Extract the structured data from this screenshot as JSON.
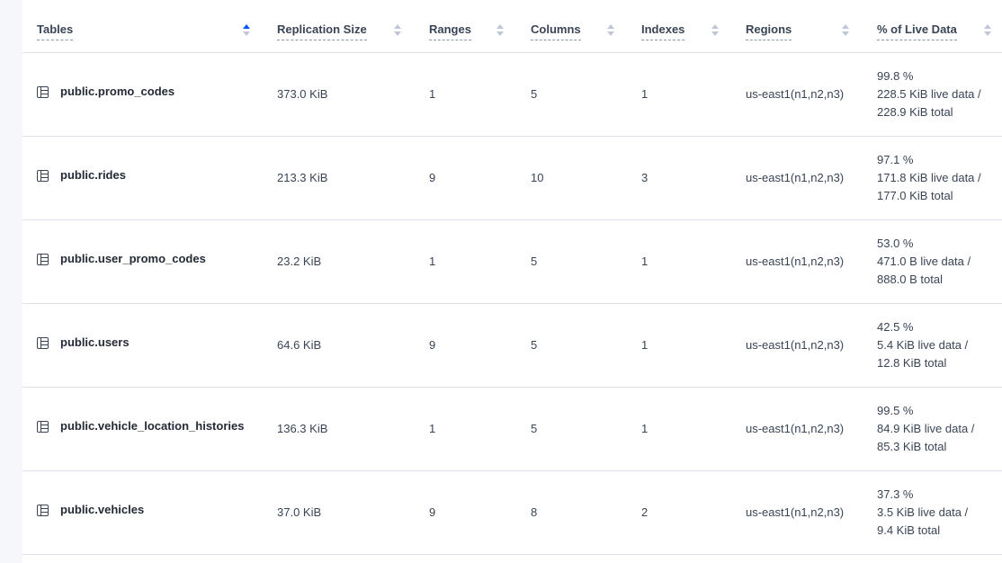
{
  "headers": [
    {
      "label": "Tables",
      "sorted": "asc"
    },
    {
      "label": "Replication Size"
    },
    {
      "label": "Ranges"
    },
    {
      "label": "Columns"
    },
    {
      "label": "Indexes"
    },
    {
      "label": "Regions"
    },
    {
      "label": "% of Live Data"
    }
  ],
  "rows": [
    {
      "name": "public.promo_codes",
      "size": "373.0 KiB",
      "ranges": "1",
      "columns": "5",
      "indexes": "1",
      "regions": "us-east1(n1,n2,n3)",
      "pct": "99.8 %",
      "live": "228.5 KiB live data /",
      "total": "228.9 KiB total"
    },
    {
      "name": "public.rides",
      "size": "213.3 KiB",
      "ranges": "9",
      "columns": "10",
      "indexes": "3",
      "regions": "us-east1(n1,n2,n3)",
      "pct": "97.1 %",
      "live": "171.8 KiB live data /",
      "total": "177.0 KiB total"
    },
    {
      "name": "public.user_promo_codes",
      "size": "23.2 KiB",
      "ranges": "1",
      "columns": "5",
      "indexes": "1",
      "regions": "us-east1(n1,n2,n3)",
      "pct": "53.0 %",
      "live": "471.0 B live data /",
      "total": "888.0 B total"
    },
    {
      "name": "public.users",
      "size": "64.6 KiB",
      "ranges": "9",
      "columns": "5",
      "indexes": "1",
      "regions": "us-east1(n1,n2,n3)",
      "pct": "42.5 %",
      "live": "5.4 KiB live data /",
      "total": "12.8 KiB total"
    },
    {
      "name": "public.vehicle_location_histories",
      "size": "136.3 KiB",
      "ranges": "1",
      "columns": "5",
      "indexes": "1",
      "regions": "us-east1(n1,n2,n3)",
      "pct": "99.5 %",
      "live": "84.9 KiB live data /",
      "total": "85.3 KiB total"
    },
    {
      "name": "public.vehicles",
      "size": "37.0 KiB",
      "ranges": "9",
      "columns": "8",
      "indexes": "2",
      "regions": "us-east1(n1,n2,n3)",
      "pct": "37.3 %",
      "live": "3.5 KiB live data /",
      "total": "9.4 KiB total"
    }
  ]
}
